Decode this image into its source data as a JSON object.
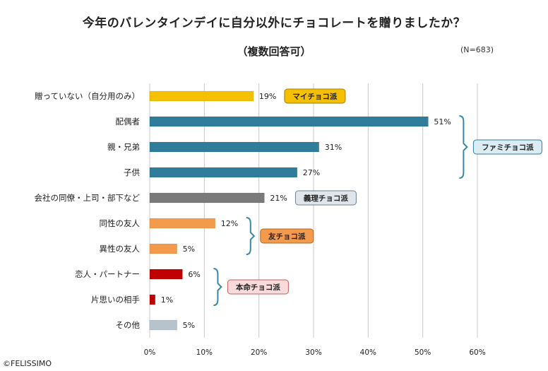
{
  "title": "今年のバレンタインデイに自分以外にチョコレートを贈りましたか？",
  "subtitle": "（複数回答可）",
  "note": "(N=683)",
  "copyright": "©FELISSIMO",
  "chart_data": {
    "type": "bar",
    "orientation": "horizontal",
    "title": "今年のバレンタインデイに自分以外にチョコレートを贈りましたか？",
    "subtitle": "（複数回答可）",
    "xlabel": "",
    "ylabel": "",
    "xlim": [
      0,
      60
    ],
    "unit": "%",
    "ticks": [
      "0%",
      "10%",
      "20%",
      "30%",
      "40%",
      "50%",
      "60%"
    ],
    "tick_values": [
      0,
      10,
      20,
      30,
      40,
      50,
      60
    ],
    "grid": true,
    "categories": [
      "贈っていない（自分用のみ）",
      "配偶者",
      "親・兄弟",
      "子供",
      "会社の同僚・上司・部下など",
      "同性の友人",
      "異性の友人",
      "恋人・パートナー",
      "片思いの相手",
      "その他"
    ],
    "values": [
      19,
      51,
      31,
      27,
      21,
      12,
      5,
      6,
      1,
      5
    ],
    "value_labels": [
      "19%",
      "51%",
      "31%",
      "27%",
      "21%",
      "12%",
      "5%",
      "6%",
      "1%",
      "5%"
    ],
    "bar_colors": [
      "#f5c000",
      "#2f7d9a",
      "#2f7d9a",
      "#2f7d9a",
      "#7a7a7a",
      "#f49a4c",
      "#f49a4c",
      "#c00000",
      "#c00000",
      "#b7c3cc"
    ],
    "groups": [
      {
        "label": "マイチョコ派",
        "start": 0,
        "end": 0,
        "bracket": false,
        "fill": "#f5c000",
        "stroke": "#a08000",
        "text_color": "#222222"
      },
      {
        "label": "ファミチョコ派",
        "start": 1,
        "end": 3,
        "bracket": true,
        "fill": "#dcecf3",
        "stroke": "#2f7d9a",
        "text_color": "#222222"
      },
      {
        "label": "義理チョコ派",
        "start": 4,
        "end": 4,
        "bracket": false,
        "fill": "#dfe5ea",
        "stroke": "#6f7f8c",
        "text_color": "#222222"
      },
      {
        "label": "友チョコ派",
        "start": 5,
        "end": 6,
        "bracket": true,
        "fill": "#f49a4c",
        "stroke": "#b56520",
        "text_color": "#222222"
      },
      {
        "label": "本命チョコ派",
        "start": 7,
        "end": 8,
        "bracket": true,
        "fill": "#f9dada",
        "stroke": "#c06060",
        "text_color": "#222222"
      }
    ]
  }
}
